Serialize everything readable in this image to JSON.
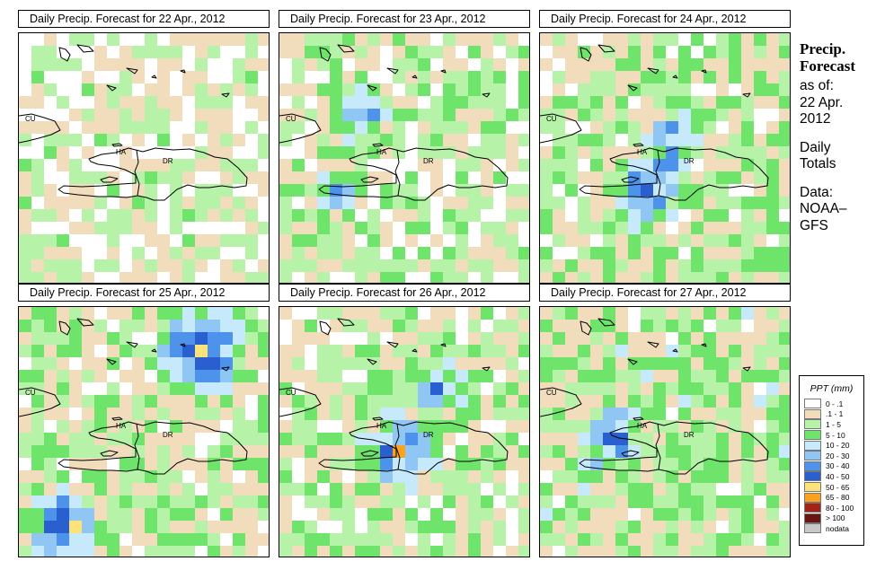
{
  "panels": [
    {
      "title": "Daily Precip. Forecast for  22 Apr., 2012",
      "seed": 11,
      "bias": 1.0,
      "hot": []
    },
    {
      "title": "Daily Precip. Forecast for  23 Apr., 2012",
      "seed": 23,
      "bias": 1.5,
      "hot": [
        [
          6,
          6,
          4.5,
          3
        ],
        [
          4,
          12,
          3.5,
          2.5
        ]
      ]
    },
    {
      "title": "Daily Precip. Forecast for  24 Apr., 2012",
      "seed": 37,
      "bias": 1.7,
      "hot": [
        [
          8,
          12,
          5,
          3.5
        ],
        [
          10,
          8,
          4,
          3
        ]
      ]
    },
    {
      "title": "Daily Precip. Forecast for  25 Apr., 2012",
      "seed": 41,
      "bias": 1.7,
      "hot": [
        [
          3,
          17,
          6.5,
          3.5
        ],
        [
          14,
          3,
          7,
          4
        ]
      ]
    },
    {
      "title": "Daily Precip. Forecast for  26 Apr., 2012",
      "seed": 53,
      "bias": 1.6,
      "hot": [
        [
          9,
          11,
          6,
          3.5
        ],
        [
          12,
          6,
          4.5,
          3
        ]
      ]
    },
    {
      "title": "Daily Precip. Forecast for  27 Apr., 2012",
      "seed": 67,
      "bias": 2.0,
      "hot": [
        [
          5,
          10,
          4.5,
          3
        ]
      ]
    }
  ],
  "map_labels": {
    "cu": "CU",
    "ha": "HA",
    "dr": "DR"
  },
  "side": {
    "title1": "Precip.",
    "title2": "Forecast",
    "asof": "as of:",
    "date1": "22 Apr.",
    "date2": "2012",
    "daily1": "Daily",
    "daily2": "Totals",
    "data1": "Data:",
    "data2": "NOAA–",
    "data3": "GFS"
  },
  "legend": {
    "title": "PPT (mm)",
    "items": [
      {
        "label": "0 - .1",
        "color": "#ffffff"
      },
      {
        "label": ".1 - 1",
        "color": "#f1dcbc"
      },
      {
        "label": "1 - 5",
        "color": "#b6f2a7"
      },
      {
        "label": "5 - 10",
        "color": "#6ee46a"
      },
      {
        "label": "10 - 20",
        "color": "#c6e9fb"
      },
      {
        "label": "20 - 30",
        "color": "#8fc6f3"
      },
      {
        "label": "30 - 40",
        "color": "#4d93ec"
      },
      {
        "label": "40 - 50",
        "color": "#2a5fcf"
      },
      {
        "label": "50 - 65",
        "color": "#fde27a"
      },
      {
        "label": "65 - 80",
        "color": "#f8a21e"
      },
      {
        "label": "80 - 100",
        "color": "#a32317"
      },
      {
        "label": "> 100",
        "color": "#6a1510"
      },
      {
        "label": "nodata",
        "color": "#c8c8c8"
      }
    ]
  }
}
